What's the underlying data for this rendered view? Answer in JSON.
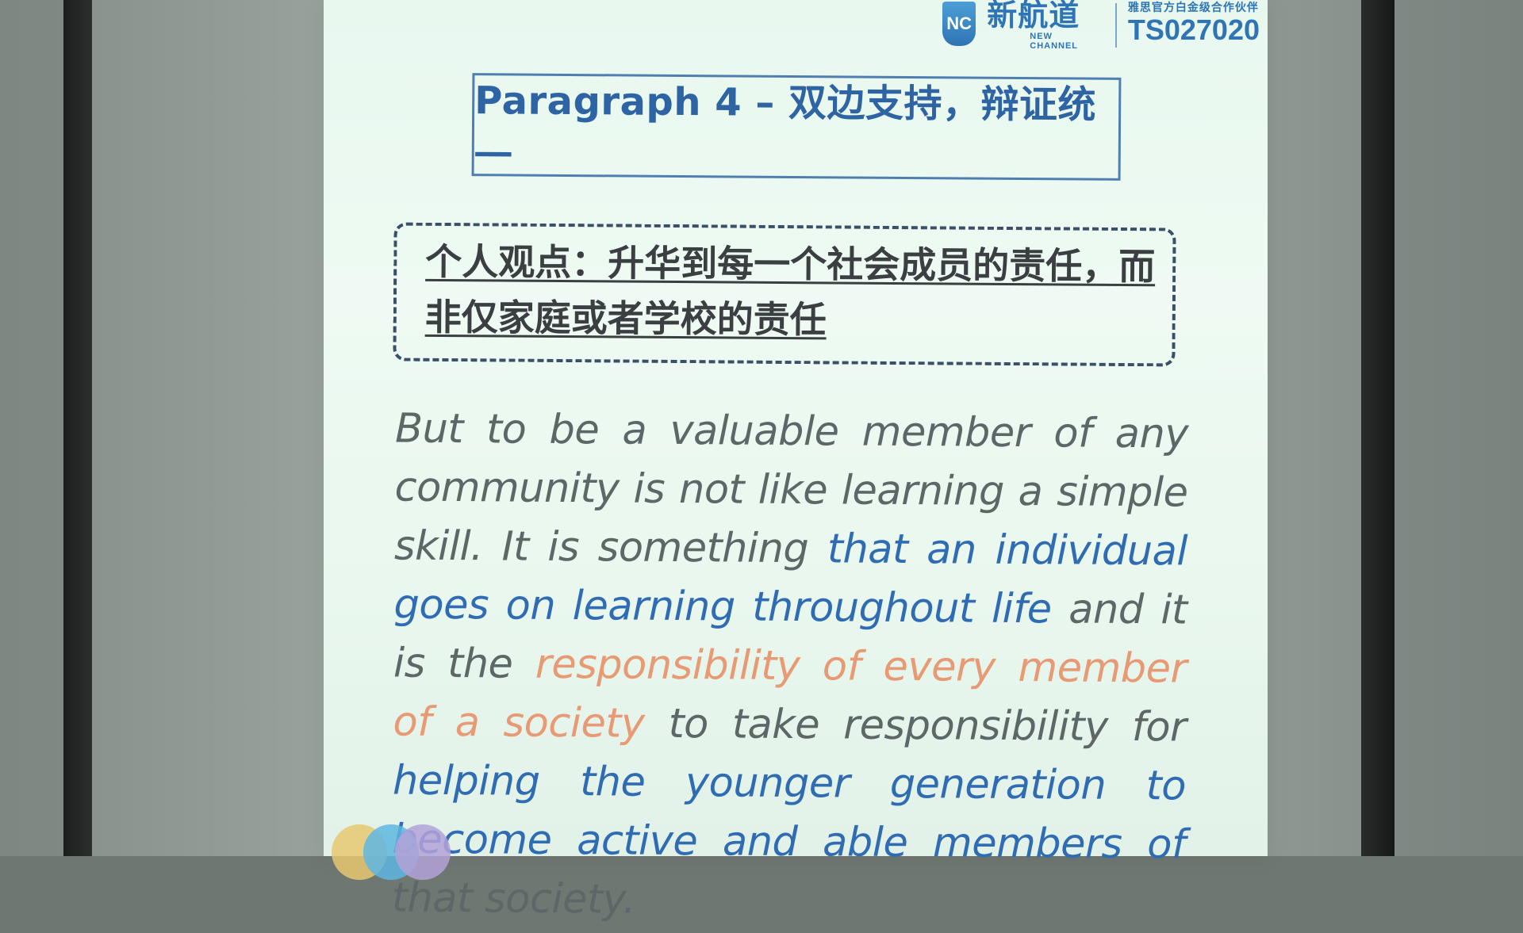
{
  "logo": {
    "badge": "NC",
    "brand_cn": "新航道",
    "brand_en": "NEW CHANNEL",
    "partner_line": "雅思官方白金级合作伙伴",
    "code": "TS027020"
  },
  "slide": {
    "title": "Paragraph 4 – 双边支持，辩证统一",
    "opinion": "个人观点：升华到每一个社会成员的责任，而非仅家庭或者学校的责任",
    "body": {
      "p1": "But to be a valuable member of any community is not like learning a simple skill. It is something",
      "p2": "that an individual goes on learning throughout life",
      "p3": "and it is the",
      "p4": "responsibility of every member of a society",
      "p5": "to take responsibility for",
      "p6": "helping the younger generation to become active and able members of",
      "p7": "that society."
    }
  },
  "colors": {
    "slide_background": "#e8f8ef",
    "title_blue": "#2e64a4",
    "highlight_orange": "#e79a74",
    "text_gray": "#606a6a"
  }
}
